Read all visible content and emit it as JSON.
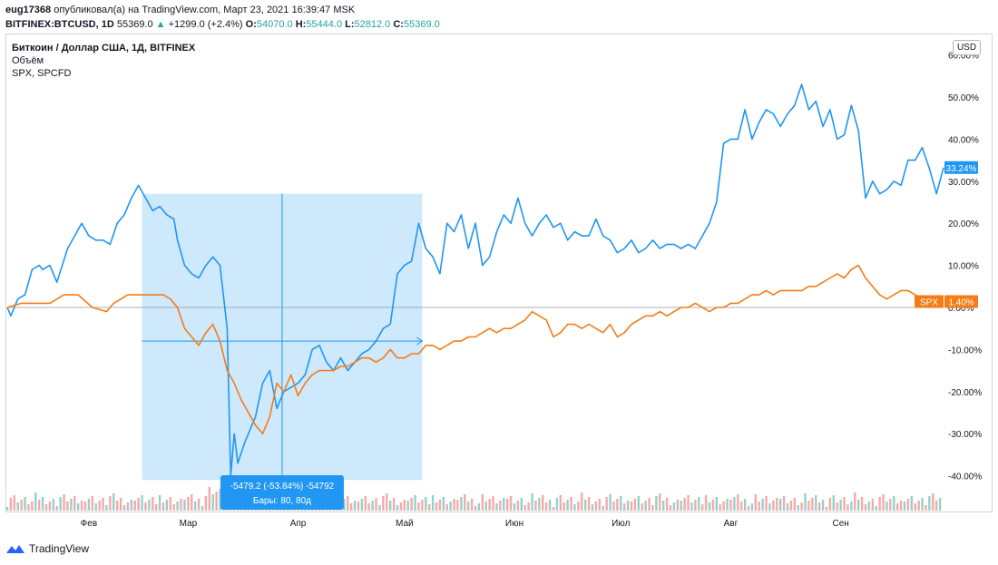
{
  "header": {
    "author": "eug17368",
    "published_text": "опубликовал(а) на TradingView.com, Март 23, 2021 16:39:47 MSK",
    "symbol": "BITFINEX:BTCUSD, 1D",
    "last": "55369.0",
    "change": "+1299.0 (+2.4%)",
    "o_label": "O:",
    "o": "54070.0",
    "h_label": "H:",
    "h": "55444.0",
    "l_label": "L:",
    "l": "52812.0",
    "c_label": "C:",
    "c": "55369.0"
  },
  "legend": {
    "title": "Биткоин / Доллар США, 1Д, BITFINEX",
    "volume": "Объём",
    "compare": "SPX, SPCFD"
  },
  "currency_button": "USD",
  "measure": {
    "line1": "-5479.2 (-53.84%) -54792",
    "line2": "Бары: 80, 80д"
  },
  "footer": {
    "brand": "TradingView"
  },
  "colors": {
    "btc": "#2196f3",
    "spx": "#f57c18",
    "accent": "#2962ff"
  },
  "chart_data": {
    "type": "line",
    "ylabel": "",
    "y_ticks": [
      -40,
      -30,
      -20,
      -10,
      0,
      10,
      20,
      30,
      40,
      50,
      60
    ],
    "x_ticks": [
      {
        "day": 23,
        "label": "Фев"
      },
      {
        "day": 51,
        "label": "Мар"
      },
      {
        "day": 82,
        "label": "Апр"
      },
      {
        "day": 112,
        "label": "Май"
      },
      {
        "day": 143,
        "label": "Июн"
      },
      {
        "day": 173,
        "label": "Июл"
      },
      {
        "day": 204,
        "label": "Авг"
      },
      {
        "day": 235,
        "label": "Сен"
      }
    ],
    "series": [
      {
        "name": "Биткоин / Доллар США",
        "badge": "33.24%",
        "points": [
          [
            0,
            0
          ],
          [
            1,
            -2
          ],
          [
            3,
            2
          ],
          [
            5,
            3
          ],
          [
            7,
            9
          ],
          [
            9,
            10
          ],
          [
            10,
            9
          ],
          [
            12,
            10
          ],
          [
            14,
            6
          ],
          [
            17,
            14
          ],
          [
            19,
            17
          ],
          [
            21,
            20
          ],
          [
            23,
            17
          ],
          [
            25,
            16
          ],
          [
            27,
            16
          ],
          [
            29,
            15
          ],
          [
            31,
            20
          ],
          [
            33,
            22
          ],
          [
            35,
            26
          ],
          [
            37,
            29
          ],
          [
            39,
            26
          ],
          [
            41,
            23
          ],
          [
            43,
            24
          ],
          [
            45,
            22
          ],
          [
            47,
            21
          ],
          [
            48,
            16
          ],
          [
            50,
            10
          ],
          [
            52,
            8
          ],
          [
            54,
            7
          ],
          [
            56,
            10
          ],
          [
            58,
            12
          ],
          [
            60,
            10
          ],
          [
            62,
            -5
          ],
          [
            63,
            -40
          ],
          [
            64,
            -30
          ],
          [
            65,
            -37
          ],
          [
            67,
            -32
          ],
          [
            70,
            -26
          ],
          [
            72,
            -18
          ],
          [
            74,
            -15
          ],
          [
            76,
            -24
          ],
          [
            78,
            -20
          ],
          [
            80,
            -19
          ],
          [
            82,
            -18
          ],
          [
            84,
            -16
          ],
          [
            86,
            -10
          ],
          [
            88,
            -9
          ],
          [
            90,
            -13
          ],
          [
            92,
            -15
          ],
          [
            94,
            -12
          ],
          [
            96,
            -15
          ],
          [
            98,
            -13
          ],
          [
            100,
            -11
          ],
          [
            102,
            -10
          ],
          [
            104,
            -8
          ],
          [
            106,
            -5
          ],
          [
            108,
            -4
          ],
          [
            110,
            8
          ],
          [
            112,
            10
          ],
          [
            114,
            11
          ],
          [
            116,
            20
          ],
          [
            118,
            14
          ],
          [
            120,
            12
          ],
          [
            122,
            8
          ],
          [
            124,
            20
          ],
          [
            126,
            18
          ],
          [
            128,
            22
          ],
          [
            130,
            14
          ],
          [
            132,
            20
          ],
          [
            134,
            10
          ],
          [
            136,
            12
          ],
          [
            138,
            18
          ],
          [
            140,
            22
          ],
          [
            142,
            20
          ],
          [
            144,
            26
          ],
          [
            146,
            20
          ],
          [
            148,
            17
          ],
          [
            150,
            20
          ],
          [
            152,
            22
          ],
          [
            154,
            19
          ],
          [
            156,
            20
          ],
          [
            158,
            16
          ],
          [
            160,
            18
          ],
          [
            162,
            17
          ],
          [
            164,
            17
          ],
          [
            166,
            21
          ],
          [
            168,
            17
          ],
          [
            170,
            16
          ],
          [
            172,
            13
          ],
          [
            174,
            14
          ],
          [
            176,
            16
          ],
          [
            178,
            13
          ],
          [
            180,
            14
          ],
          [
            182,
            16
          ],
          [
            184,
            14
          ],
          [
            186,
            15
          ],
          [
            188,
            15
          ],
          [
            190,
            14
          ],
          [
            192,
            15
          ],
          [
            194,
            14
          ],
          [
            196,
            17
          ],
          [
            198,
            20
          ],
          [
            200,
            25
          ],
          [
            202,
            39
          ],
          [
            204,
            40
          ],
          [
            206,
            40
          ],
          [
            208,
            47
          ],
          [
            210,
            40
          ],
          [
            212,
            44
          ],
          [
            214,
            47
          ],
          [
            216,
            46
          ],
          [
            218,
            43
          ],
          [
            220,
            46
          ],
          [
            222,
            48
          ],
          [
            224,
            53
          ],
          [
            226,
            47
          ],
          [
            228,
            49
          ],
          [
            230,
            43
          ],
          [
            232,
            47
          ],
          [
            234,
            40
          ],
          [
            236,
            41
          ],
          [
            238,
            48
          ],
          [
            240,
            42
          ],
          [
            242,
            26
          ],
          [
            244,
            30
          ],
          [
            246,
            27
          ],
          [
            248,
            28
          ],
          [
            250,
            30
          ],
          [
            252,
            29
          ],
          [
            254,
            35
          ],
          [
            256,
            35
          ],
          [
            258,
            38
          ],
          [
            260,
            33
          ],
          [
            262,
            27
          ],
          [
            264,
            33.24
          ]
        ]
      },
      {
        "name": "SPX",
        "badge": "1.40%",
        "points": [
          [
            0,
            0
          ],
          [
            4,
            1
          ],
          [
            8,
            1
          ],
          [
            12,
            1
          ],
          [
            16,
            3
          ],
          [
            20,
            3
          ],
          [
            24,
            0
          ],
          [
            28,
            -1
          ],
          [
            30,
            1
          ],
          [
            34,
            3
          ],
          [
            38,
            3
          ],
          [
            40,
            3
          ],
          [
            44,
            3
          ],
          [
            46,
            2
          ],
          [
            48,
            0
          ],
          [
            50,
            -5
          ],
          [
            52,
            -7
          ],
          [
            54,
            -9
          ],
          [
            56,
            -6
          ],
          [
            58,
            -4
          ],
          [
            60,
            -8
          ],
          [
            62,
            -15
          ],
          [
            64,
            -18
          ],
          [
            66,
            -22
          ],
          [
            68,
            -25
          ],
          [
            70,
            -28
          ],
          [
            72,
            -30
          ],
          [
            74,
            -26
          ],
          [
            76,
            -18
          ],
          [
            78,
            -20
          ],
          [
            80,
            -16
          ],
          [
            82,
            -21
          ],
          [
            84,
            -18
          ],
          [
            86,
            -16
          ],
          [
            88,
            -15
          ],
          [
            90,
            -15
          ],
          [
            92,
            -15
          ],
          [
            94,
            -14
          ],
          [
            96,
            -14
          ],
          [
            98,
            -13
          ],
          [
            100,
            -12
          ],
          [
            102,
            -12
          ],
          [
            104,
            -13
          ],
          [
            106,
            -12
          ],
          [
            108,
            -10
          ],
          [
            110,
            -12
          ],
          [
            112,
            -12
          ],
          [
            114,
            -11
          ],
          [
            116,
            -11
          ],
          [
            118,
            -9
          ],
          [
            120,
            -9
          ],
          [
            122,
            -10
          ],
          [
            124,
            -9
          ],
          [
            126,
            -8
          ],
          [
            128,
            -8
          ],
          [
            130,
            -7
          ],
          [
            132,
            -7
          ],
          [
            134,
            -6
          ],
          [
            136,
            -5
          ],
          [
            138,
            -6
          ],
          [
            140,
            -5
          ],
          [
            142,
            -5
          ],
          [
            144,
            -4
          ],
          [
            146,
            -3
          ],
          [
            148,
            -1
          ],
          [
            150,
            -2
          ],
          [
            152,
            -3
          ],
          [
            154,
            -7
          ],
          [
            156,
            -6
          ],
          [
            158,
            -4
          ],
          [
            160,
            -4
          ],
          [
            162,
            -5
          ],
          [
            164,
            -4
          ],
          [
            166,
            -5
          ],
          [
            168,
            -6
          ],
          [
            170,
            -4
          ],
          [
            172,
            -7
          ],
          [
            174,
            -6
          ],
          [
            176,
            -4
          ],
          [
            178,
            -3
          ],
          [
            180,
            -2
          ],
          [
            182,
            -2
          ],
          [
            184,
            -1
          ],
          [
            186,
            -2
          ],
          [
            188,
            -1
          ],
          [
            190,
            0
          ],
          [
            192,
            0
          ],
          [
            194,
            1
          ],
          [
            196,
            0
          ],
          [
            198,
            -1
          ],
          [
            200,
            0
          ],
          [
            202,
            0
          ],
          [
            204,
            1
          ],
          [
            206,
            1
          ],
          [
            208,
            2
          ],
          [
            210,
            3
          ],
          [
            212,
            3
          ],
          [
            214,
            4
          ],
          [
            216,
            3
          ],
          [
            218,
            4
          ],
          [
            220,
            4
          ],
          [
            222,
            4
          ],
          [
            224,
            4
          ],
          [
            226,
            5
          ],
          [
            228,
            5
          ],
          [
            230,
            6
          ],
          [
            232,
            7
          ],
          [
            234,
            8
          ],
          [
            236,
            7
          ],
          [
            238,
            9
          ],
          [
            240,
            10
          ],
          [
            242,
            7
          ],
          [
            244,
            5
          ],
          [
            246,
            3
          ],
          [
            248,
            2
          ],
          [
            250,
            3
          ],
          [
            252,
            4
          ],
          [
            254,
            4
          ],
          [
            256,
            3
          ],
          [
            258,
            2
          ],
          [
            260,
            0
          ],
          [
            262,
            1
          ],
          [
            264,
            1.4
          ]
        ]
      }
    ],
    "measure_range": {
      "from_day": 38,
      "to_day": 117,
      "y_from": 27,
      "y_to": -41
    }
  }
}
